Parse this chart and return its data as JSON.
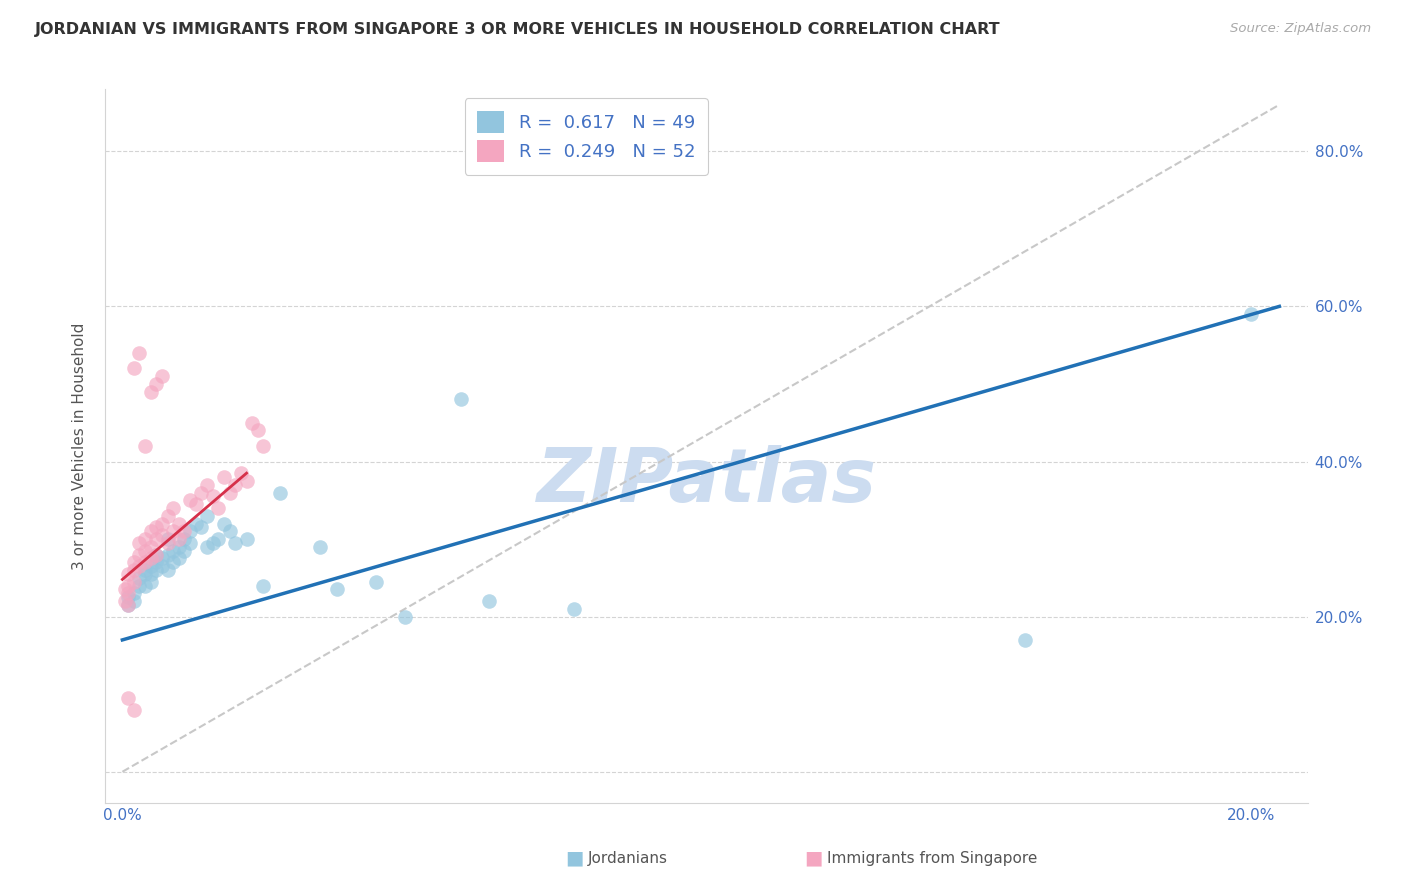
{
  "title": "JORDANIAN VS IMMIGRANTS FROM SINGAPORE 3 OR MORE VEHICLES IN HOUSEHOLD CORRELATION CHART",
  "source": "Source: ZipAtlas.com",
  "ylabel": "3 or more Vehicles in Household",
  "right_yticks": [
    0.0,
    0.2,
    0.4,
    0.6,
    0.8
  ],
  "right_yticklabels": [
    "",
    "20.0%",
    "40.0%",
    "60.0%",
    "80.0%"
  ],
  "xticks": [
    0.0,
    0.05,
    0.1,
    0.15,
    0.2
  ],
  "xticklabels": [
    "0.0%",
    "",
    "",
    "",
    "20.0%"
  ],
  "xlim": [
    -0.003,
    0.21
  ],
  "ylim": [
    -0.04,
    0.88
  ],
  "blue_R": "0.617",
  "blue_N": "49",
  "pink_R": "0.249",
  "pink_N": "52",
  "blue_color": "#92c5de",
  "pink_color": "#f4a6c0",
  "blue_line_color": "#2171b5",
  "pink_line_color": "#d6304a",
  "diag_color": "#c8c8c8",
  "watermark": "ZIPatlas",
  "watermark_color": "#ccdcf0",
  "legend_label_blue": "Jordanians",
  "legend_label_pink": "Immigrants from Singapore",
  "blue_scatter_x": [
    0.001,
    0.001,
    0.002,
    0.002,
    0.003,
    0.003,
    0.004,
    0.004,
    0.004,
    0.005,
    0.005,
    0.005,
    0.006,
    0.006,
    0.006,
    0.007,
    0.007,
    0.008,
    0.008,
    0.008,
    0.009,
    0.009,
    0.01,
    0.01,
    0.011,
    0.011,
    0.012,
    0.012,
    0.013,
    0.014,
    0.015,
    0.015,
    0.016,
    0.017,
    0.018,
    0.019,
    0.02,
    0.022,
    0.025,
    0.028,
    0.035,
    0.038,
    0.045,
    0.05,
    0.06,
    0.065,
    0.08,
    0.16,
    0.2
  ],
  "blue_scatter_y": [
    0.215,
    0.225,
    0.22,
    0.23,
    0.24,
    0.25,
    0.255,
    0.24,
    0.26,
    0.245,
    0.265,
    0.255,
    0.27,
    0.26,
    0.28,
    0.265,
    0.275,
    0.26,
    0.28,
    0.3,
    0.285,
    0.27,
    0.29,
    0.275,
    0.3,
    0.285,
    0.295,
    0.31,
    0.32,
    0.315,
    0.29,
    0.33,
    0.295,
    0.3,
    0.32,
    0.31,
    0.295,
    0.3,
    0.24,
    0.36,
    0.29,
    0.235,
    0.245,
    0.2,
    0.48,
    0.22,
    0.21,
    0.17,
    0.59
  ],
  "pink_scatter_x": [
    0.0005,
    0.0005,
    0.001,
    0.001,
    0.001,
    0.001,
    0.002,
    0.002,
    0.002,
    0.003,
    0.003,
    0.003,
    0.004,
    0.004,
    0.004,
    0.005,
    0.005,
    0.005,
    0.006,
    0.006,
    0.006,
    0.007,
    0.007,
    0.008,
    0.008,
    0.009,
    0.009,
    0.01,
    0.01,
    0.011,
    0.012,
    0.013,
    0.014,
    0.015,
    0.016,
    0.017,
    0.018,
    0.019,
    0.02,
    0.021,
    0.022,
    0.023,
    0.024,
    0.025,
    0.005,
    0.006,
    0.007,
    0.002,
    0.003,
    0.004,
    0.001,
    0.002
  ],
  "pink_scatter_y": [
    0.22,
    0.235,
    0.215,
    0.23,
    0.24,
    0.255,
    0.245,
    0.26,
    0.27,
    0.265,
    0.28,
    0.295,
    0.285,
    0.3,
    0.27,
    0.31,
    0.29,
    0.275,
    0.3,
    0.315,
    0.28,
    0.305,
    0.32,
    0.295,
    0.33,
    0.31,
    0.34,
    0.32,
    0.3,
    0.31,
    0.35,
    0.345,
    0.36,
    0.37,
    0.355,
    0.34,
    0.38,
    0.36,
    0.37,
    0.385,
    0.375,
    0.45,
    0.44,
    0.42,
    0.49,
    0.5,
    0.51,
    0.52,
    0.54,
    0.42,
    0.095,
    0.08
  ],
  "blue_line_x": [
    0.0,
    0.205
  ],
  "blue_line_y": [
    0.17,
    0.6
  ],
  "pink_line_x": [
    0.0,
    0.022
  ],
  "pink_line_y": [
    0.248,
    0.385
  ],
  "diag_line_x": [
    0.0,
    0.205
  ],
  "diag_line_y": [
    0.0,
    0.86
  ]
}
